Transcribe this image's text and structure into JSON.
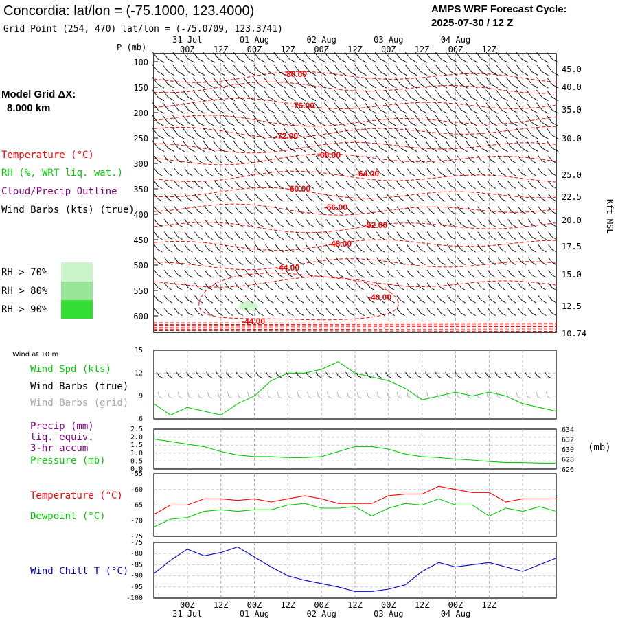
{
  "header": {
    "title": "Concordia:  lat/lon = (-75.1000, 123.4000)",
    "grid_point": "Grid Point (254, 470) lat/lon = (-75.0709, 123.3741)",
    "cycle_line1": "AMPS WRF Forecast Cycle:",
    "cycle_line2": "2025-07-30 / 12  Z"
  },
  "model": {
    "label": "Model Grid ΔX:",
    "value": "8.000 km"
  },
  "legend_upper": {
    "temperature": "Temperature (°C)",
    "rh": "RH (%, WRT liq. wat.)",
    "cloud": "Cloud/Precip Outline",
    "wind": "Wind Barbs (kts) (true)",
    "rh70": "RH > 70%",
    "rh80": "RH > 80%",
    "rh90": "RH > 90%"
  },
  "legend_wind": {
    "title": "Wind at 10 m",
    "spd": "Wind Spd (kts)",
    "barbs_true": "Wind Barbs (true)",
    "barbs_grid": "Wind Barbs (grid)"
  },
  "legend_precip": {
    "l1": "Precip (mm)",
    "l2": "liq. equiv.",
    "l3": "3-hr accum",
    "l4": "Pressure (mb)",
    "unit_right": "(mb)"
  },
  "legend_temp": {
    "temp": "Temperature (°C)",
    "dew": "Dewpoint (°C)"
  },
  "legend_chill": {
    "label": "Wind Chill T (°C)"
  },
  "colors": {
    "temperature": "#ff0000",
    "rh_green": "#00cc00",
    "cloud_purple": "#800080",
    "wind_chill": "#0000cc",
    "grid_barbs": "#aaaaaa",
    "rh70": "#ccf5cc",
    "rh80": "#99e699",
    "rh90": "#33dd33"
  },
  "chart_data": [
    {
      "name": "upper_air_time_height",
      "type": "contour",
      "xlabel": "",
      "ylabel": "P (mb)",
      "right_label": "Kft MSL",
      "time_top_ticks": [
        "00Z",
        "12Z",
        "00Z",
        "12Z",
        "00Z",
        "12Z",
        "00Z",
        "12Z",
        "00Z",
        "12Z"
      ],
      "dates_top": [
        "31 Jul",
        "01 Aug",
        "02 Aug",
        "03 Aug",
        "04 Aug"
      ],
      "pressure_ticks": [
        100,
        150,
        200,
        250,
        300,
        350,
        400,
        450,
        500,
        550,
        600
      ],
      "height_ticks_kft": [
        "45.0",
        "40.0",
        "35.0",
        "30.0",
        "25.0",
        "22.5",
        "20.0",
        "17.5",
        "15.0",
        "12.5",
        "10.74"
      ],
      "temperature_isotherm_labels": [
        "-80.00",
        "-76.00",
        "-72.00",
        "-68.00",
        "-64.00",
        "-60.00",
        "-56.00",
        "-52.00",
        "-48.00",
        "-44.00",
        "-40.00",
        "-44.00"
      ]
    },
    {
      "name": "wind_10m",
      "type": "line",
      "ylim": [
        6,
        15
      ],
      "y_ticks": [
        "15",
        "12",
        "9",
        "6"
      ],
      "x_hours": [
        0,
        6,
        12,
        18,
        24,
        30,
        36,
        42,
        48,
        54,
        60,
        66,
        72,
        78,
        84,
        90,
        96,
        102,
        108,
        114,
        120,
        126,
        132,
        138,
        144
      ],
      "series": [
        {
          "name": "Wind Spd (kts)",
          "color": "#00cc00",
          "values": [
            8.0,
            6.5,
            7.5,
            7.0,
            6.5,
            8.0,
            9.0,
            11.0,
            12.0,
            12.0,
            12.5,
            13.5,
            12.0,
            11.5,
            11.0,
            10.0,
            8.5,
            9.0,
            9.5,
            9.0,
            9.5,
            9.0,
            8.0,
            7.5,
            7.0
          ]
        }
      ]
    },
    {
      "name": "precip_pressure",
      "type": "line",
      "ylim_left": [
        0.0,
        2.5
      ],
      "y_ticks_left": [
        "2.5",
        "2.0",
        "1.5",
        "1.0",
        "0.5",
        "0.0"
      ],
      "ylim_right": [
        626,
        634
      ],
      "y_ticks_right": [
        "634",
        "632",
        "630",
        "628",
        "626"
      ],
      "x_hours": [
        0,
        6,
        12,
        18,
        24,
        30,
        36,
        42,
        48,
        54,
        60,
        66,
        72,
        78,
        84,
        90,
        96,
        102,
        108,
        114,
        120,
        126,
        132,
        138,
        144
      ],
      "series": [
        {
          "name": "Pressure (mb)",
          "color": "#00cc00",
          "values": [
            632.0,
            631.5,
            631.0,
            630.5,
            629.5,
            628.8,
            628.5,
            628.5,
            628.3,
            628.3,
            628.5,
            629.5,
            630.5,
            630.5,
            630.0,
            629.0,
            628.5,
            628.3,
            628.0,
            627.8,
            627.5,
            627.3,
            627.3,
            627.2,
            627.2
          ]
        }
      ]
    },
    {
      "name": "temperature_dewpoint",
      "type": "line",
      "ylim": [
        -75,
        -55
      ],
      "y_ticks": [
        "-55",
        "-60",
        "-65",
        "-70",
        "-75"
      ],
      "x_hours": [
        0,
        6,
        12,
        18,
        24,
        30,
        36,
        42,
        48,
        54,
        60,
        66,
        72,
        78,
        84,
        90,
        96,
        102,
        108,
        114,
        120,
        126,
        132,
        138,
        144
      ],
      "series": [
        {
          "name": "Temperature (°C)",
          "color": "#ff0000",
          "values": [
            -68,
            -65,
            -65,
            -63,
            -63,
            -63.5,
            -63,
            -64,
            -63,
            -62,
            -63,
            -64.5,
            -64.5,
            -64.5,
            -62,
            -61.5,
            -61.5,
            -59,
            -60,
            -61,
            -61,
            -64,
            -63,
            -63,
            -63
          ]
        },
        {
          "name": "Dewpoint (°C)",
          "color": "#00cc00",
          "values": [
            -72,
            -69.5,
            -69,
            -67,
            -66.5,
            -67,
            -66.5,
            -66.5,
            -65,
            -64.5,
            -66,
            -66,
            -65.5,
            -68.5,
            -66,
            -64.5,
            -65,
            -63,
            -65,
            -65,
            -68.5,
            -66,
            -67,
            -65.5,
            -67
          ]
        }
      ]
    },
    {
      "name": "wind_chill",
      "type": "line",
      "ylim": [
        -100,
        -75
      ],
      "y_ticks": [
        "-75",
        "-80",
        "-85",
        "-90",
        "-95",
        "-100"
      ],
      "x_hours": [
        0,
        6,
        12,
        18,
        24,
        30,
        36,
        42,
        48,
        54,
        60,
        66,
        72,
        78,
        84,
        90,
        96,
        102,
        108,
        114,
        120,
        126,
        132,
        138,
        144
      ],
      "series": [
        {
          "name": "Wind Chill T (°C)",
          "color": "#0000cc",
          "values": [
            -89,
            -83,
            -78,
            -81,
            -79.5,
            -77,
            -81.5,
            -86,
            -90,
            -92,
            -93.5,
            -95,
            -97,
            -97,
            -96,
            -94,
            -88,
            -84,
            -86,
            -85,
            -84,
            -86,
            -88,
            -85,
            -82
          ]
        }
      ]
    }
  ],
  "bottom_axis": {
    "time_ticks": [
      "00Z",
      "12Z",
      "00Z",
      "12Z",
      "00Z",
      "12Z",
      "00Z",
      "12Z",
      "00Z",
      "12Z"
    ],
    "dates": [
      "31 Jul",
      "01 Aug",
      "02 Aug",
      "03 Aug",
      "04 Aug"
    ]
  }
}
